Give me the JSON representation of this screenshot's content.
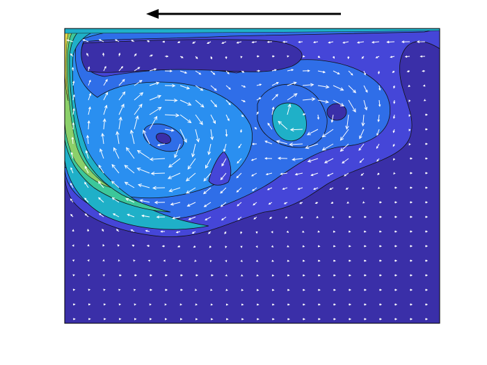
{
  "figure": {
    "kind": "velocity-field-contour-plot",
    "lid_direction": "left",
    "colors": {
      "background": "#3a2fa8",
      "level_1": "#4546d8",
      "level_2": "#2f6ee8",
      "level_3": "#2a8ff0",
      "level_4": "#1fb0c8",
      "level_5": "#3cc79a",
      "level_6": "#8bd06a",
      "level_7": "#e8d84a",
      "contour_line": "#111111",
      "arrow": "#ffffff",
      "frame": "#000000"
    }
  }
}
